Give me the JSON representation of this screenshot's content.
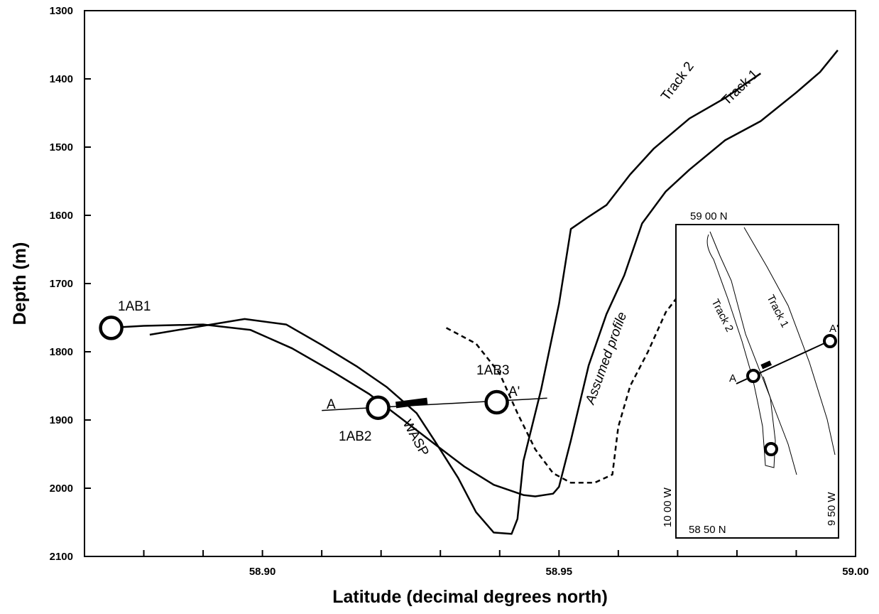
{
  "chart_data": {
    "type": "line",
    "title": "",
    "xlabel": "Latitude (decimal degrees north)",
    "ylabel": "Depth (m)",
    "xlim": [
      58.87,
      59.0
    ],
    "ylim": [
      1300,
      2100
    ],
    "y_inverted": true,
    "x_ticks": [
      58.9,
      58.95,
      59.0
    ],
    "x_tick_labels": [
      "58.90",
      "58.95",
      "59.00"
    ],
    "y_ticks": [
      1300,
      1400,
      1500,
      1600,
      1700,
      1800,
      1900,
      2000,
      2100
    ],
    "y_tick_labels": [
      "1300",
      "1400",
      "1500",
      "1600",
      "1700",
      "1800",
      "1900",
      "2000",
      "2100"
    ],
    "grid": false,
    "legend": "none",
    "series": [
      {
        "name": "Track 1",
        "style": "solid",
        "x": [
          58.874,
          58.88,
          58.89,
          58.898,
          58.905,
          58.912,
          58.918,
          58.923,
          58.929,
          58.934,
          58.939,
          58.944,
          58.946,
          58.949,
          58.95,
          58.952,
          58.955,
          58.958,
          58.961,
          58.964,
          58.968,
          58.972,
          58.978,
          58.984,
          58.99,
          58.994,
          58.997
        ],
        "y": [
          1765,
          1762,
          1760,
          1768,
          1795,
          1830,
          1862,
          1895,
          1935,
          1968,
          1995,
          2010,
          2012,
          2008,
          1998,
          1930,
          1820,
          1745,
          1688,
          1612,
          1565,
          1533,
          1490,
          1462,
          1420,
          1390,
          1358
        ]
      },
      {
        "name": "Track 2",
        "style": "solid",
        "x": [
          58.881,
          58.89,
          58.897,
          58.904,
          58.91,
          58.916,
          58.921,
          58.926,
          58.929,
          58.933,
          58.936,
          58.939,
          58.942,
          58.943,
          58.944,
          58.947,
          58.95,
          58.952,
          58.955,
          58.958,
          58.962,
          58.966,
          58.972,
          58.978,
          58.984
        ],
        "y": [
          1775,
          1762,
          1752,
          1760,
          1790,
          1822,
          1852,
          1890,
          1930,
          1985,
          2035,
          2065,
          2067,
          2045,
          1960,
          1855,
          1730,
          1620,
          1602,
          1585,
          1540,
          1502,
          1458,
          1428,
          1392
        ]
      },
      {
        "name": "Assumed profile",
        "style": "dashed",
        "x": [
          58.931,
          58.936,
          58.94,
          58.943,
          58.946,
          58.949,
          58.952,
          58.956,
          58.959,
          58.96,
          58.962,
          58.965,
          58.968,
          58.971
        ],
        "y": [
          1765,
          1788,
          1832,
          1890,
          1943,
          1978,
          1992,
          1992,
          1980,
          1910,
          1850,
          1800,
          1742,
          1708
        ]
      },
      {
        "name": "A–A'",
        "style": "solid-thin",
        "x": [
          58.91,
          58.948
        ],
        "y": [
          1886,
          1868
        ]
      }
    ],
    "sites": [
      {
        "label": "1AB1",
        "x": 58.8745,
        "y": 1765
      },
      {
        "label": "1AB2",
        "x": 58.9195,
        "y": 1882
      },
      {
        "label": "1AB3",
        "x": 58.9395,
        "y": 1874
      }
    ],
    "wasp_segment": {
      "x": [
        58.9225,
        58.9278
      ],
      "y": [
        1878,
        1872
      ]
    },
    "annotations": {
      "track1": "Track 1",
      "track2": "Track 2",
      "assumed": "Assumed profile",
      "wasp": "WASP",
      "a_start": "A",
      "a_end": "A'"
    },
    "inset": {
      "top_left": "59 00 N",
      "bottom_left": "58 50 N",
      "left_lon": "10 00 W",
      "right_lon": "9 50 W",
      "track1": "Track 1",
      "track2": "Track 2",
      "a_start": "A",
      "a_end": "A'"
    }
  }
}
